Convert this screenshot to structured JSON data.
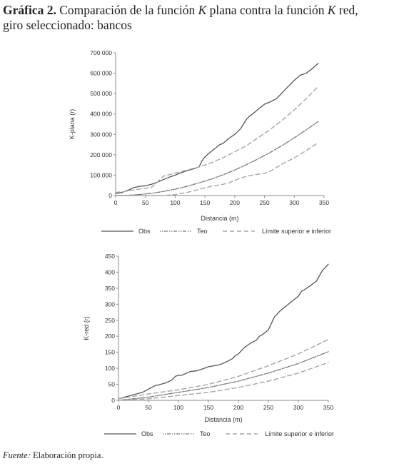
{
  "header": {
    "label": "Gráfica 2.",
    "text_1": "Comparación de la función",
    "k1": "K",
    "text_2": "plana contra la función",
    "k2": "K",
    "text_3": "red,",
    "line2": "giro seleccionado: bancos"
  },
  "source": {
    "label": "Fuente:",
    "text": "Elaboración propia."
  },
  "colors": {
    "obs": "#555555",
    "teo": "#777777",
    "limits": "#a6a6a6",
    "axis": "#888888"
  },
  "chart_data": [
    {
      "type": "line",
      "xlabel": "Distancia (m)",
      "ylabel": "K-plana (r)",
      "xlim": [
        0,
        350
      ],
      "ylim": [
        0,
        700000
      ],
      "x_ticks": [
        0,
        50,
        100,
        150,
        200,
        250,
        300,
        350
      ],
      "x_tick_labels": [
        "0",
        "50",
        "100",
        "150",
        "200",
        "250",
        "300",
        "350"
      ],
      "y_ticks": [
        0,
        100000,
        200000,
        300000,
        400000,
        500000,
        600000,
        700000
      ],
      "y_tick_labels": [
        "0",
        "100 000",
        "200 000",
        "300 000",
        "400 000",
        "500 000",
        "600 000",
        "700 000"
      ],
      "legend": [
        "Obs",
        "Teo",
        "Límite superior e inferior"
      ],
      "series": [
        {
          "name": "Obs",
          "style": "solid",
          "x": [
            0,
            10,
            20,
            30,
            40,
            50,
            60,
            70,
            80,
            90,
            100,
            110,
            120,
            130,
            140,
            145,
            150,
            160,
            170,
            175,
            180,
            190,
            200,
            210,
            220,
            225,
            230,
            240,
            250,
            260,
            270,
            280,
            290,
            300,
            310,
            320,
            330,
            340
          ],
          "y": [
            10000,
            15000,
            25000,
            38000,
            45000,
            48000,
            55000,
            65000,
            78000,
            90000,
            100000,
            112000,
            122000,
            130000,
            140000,
            170000,
            190000,
            215000,
            238000,
            250000,
            255000,
            280000,
            300000,
            328000,
            375000,
            390000,
            400000,
            425000,
            448000,
            460000,
            475000,
            505000,
            535000,
            565000,
            590000,
            600000,
            622000,
            648000
          ]
        },
        {
          "name": "Teo",
          "style": "dash-dot",
          "x": [
            0,
            20,
            40,
            60,
            80,
            100,
            120,
            140,
            160,
            180,
            200,
            220,
            240,
            260,
            280,
            300,
            320,
            340
          ],
          "y": [
            0,
            1000,
            5000,
            11000,
            20000,
            31000,
            45000,
            62000,
            80000,
            101000,
            125000,
            152000,
            181000,
            212000,
            246000,
            283000,
            322000,
            363000
          ]
        },
        {
          "name": "Límite superior",
          "style": "dashed",
          "x": [
            0,
            20,
            40,
            60,
            70,
            80,
            100,
            120,
            140,
            160,
            180,
            200,
            220,
            240,
            260,
            280,
            300,
            320,
            340
          ],
          "y": [
            15000,
            22000,
            32000,
            40000,
            65000,
            95000,
            110000,
            125000,
            140000,
            160000,
            185000,
            215000,
            245000,
            285000,
            325000,
            370000,
            420000,
            475000,
            535000
          ]
        },
        {
          "name": "Límite inferior",
          "style": "dashed",
          "x": [
            0,
            40,
            80,
            100,
            120,
            140,
            160,
            180,
            190,
            200,
            220,
            240,
            250,
            260,
            280,
            300,
            320,
            340
          ],
          "y": [
            0,
            0,
            0,
            5000,
            15000,
            30000,
            45000,
            55000,
            62000,
            75000,
            95000,
            105000,
            108000,
            120000,
            155000,
            185000,
            220000,
            260000
          ]
        }
      ]
    },
    {
      "type": "line",
      "xlabel": "Distancia (m)",
      "ylabel": "K-red (r)",
      "xlim": [
        0,
        350
      ],
      "ylim": [
        0,
        450
      ],
      "x_ticks": [
        0,
        50,
        100,
        150,
        200,
        250,
        300,
        350
      ],
      "x_tick_labels": [
        "0",
        "50",
        "100",
        "150",
        "200",
        "250",
        "300",
        "350"
      ],
      "y_ticks": [
        0,
        50,
        100,
        150,
        200,
        250,
        300,
        350,
        400,
        450
      ],
      "y_tick_labels": [
        "0",
        "50",
        "100",
        "150",
        "200",
        "250",
        "300",
        "350",
        "400",
        "450"
      ],
      "legend": [
        "Obs",
        "Teo",
        "Límite superior e inferior"
      ],
      "series": [
        {
          "name": "Obs",
          "style": "solid",
          "x": [
            0,
            10,
            20,
            30,
            40,
            50,
            60,
            70,
            80,
            90,
            95,
            100,
            105,
            110,
            120,
            130,
            140,
            150,
            160,
            170,
            180,
            190,
            195,
            200,
            210,
            220,
            230,
            235,
            240,
            250,
            260,
            270,
            280,
            290,
            300,
            305,
            310,
            320,
            330,
            340,
            350
          ],
          "y": [
            5,
            10,
            15,
            20,
            25,
            35,
            45,
            50,
            55,
            65,
            75,
            78,
            78,
            82,
            90,
            92,
            98,
            105,
            108,
            112,
            120,
            130,
            140,
            145,
            165,
            178,
            188,
            200,
            205,
            220,
            260,
            280,
            295,
            310,
            325,
            340,
            345,
            358,
            372,
            405,
            425
          ]
        },
        {
          "name": "Teo",
          "style": "dash-dot",
          "x": [
            0,
            50,
            100,
            150,
            200,
            250,
            300,
            350
          ],
          "y": [
            0,
            10,
            25,
            40,
            60,
            85,
            115,
            152
          ]
        },
        {
          "name": "Límite superior",
          "style": "dashed",
          "x": [
            0,
            50,
            100,
            150,
            200,
            250,
            300,
            350
          ],
          "y": [
            5,
            20,
            33,
            50,
            75,
            108,
            145,
            190
          ]
        },
        {
          "name": "Límite inferior",
          "style": "dashed",
          "x": [
            0,
            50,
            100,
            150,
            200,
            250,
            300,
            350
          ],
          "y": [
            0,
            5,
            15,
            25,
            40,
            60,
            85,
            118
          ]
        }
      ]
    }
  ]
}
